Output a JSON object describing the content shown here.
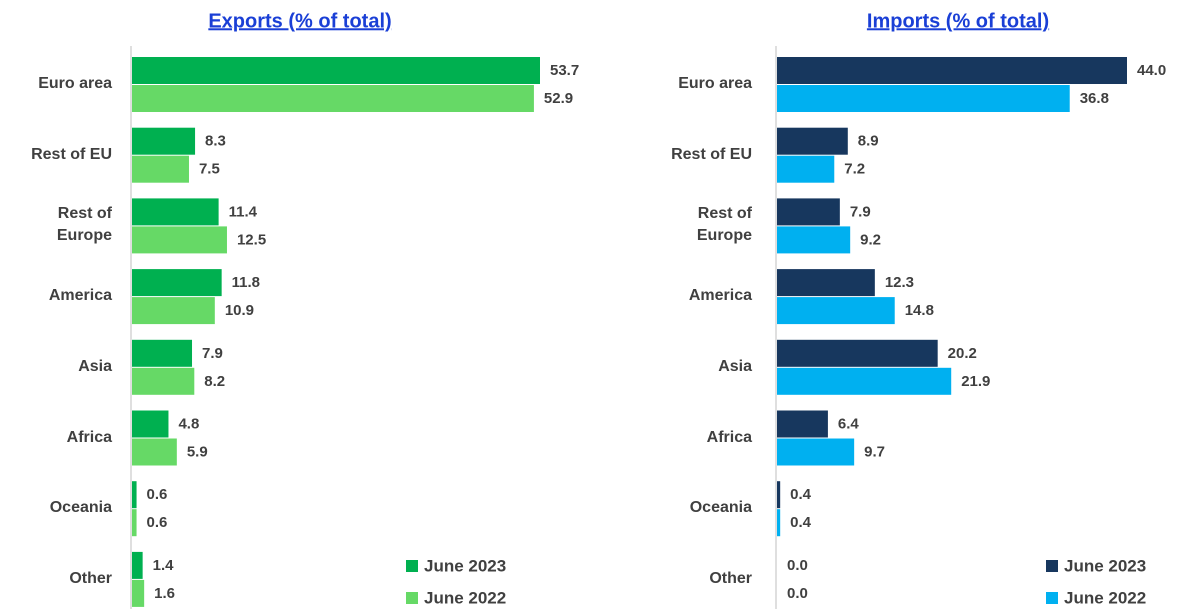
{
  "chart_data": [
    {
      "type": "bar",
      "title": "Exports (% of total)",
      "categories": [
        "Euro area",
        "Rest of EU",
        "Rest of\nEurope",
        "America",
        "Asia",
        "Africa",
        "Oceania",
        "Other"
      ],
      "series": [
        {
          "name": "June 2023",
          "color": "#00b050",
          "values": [
            53.7,
            8.3,
            11.4,
            11.8,
            7.9,
            4.8,
            0.6,
            1.4
          ],
          "value_labels": [
            "53.7",
            "8.3",
            "11.4",
            "11.8",
            "7.9",
            "4.8",
            "0.6",
            "1.4"
          ]
        },
        {
          "name": "June 2022",
          "color": "#66d966",
          "values": [
            52.9,
            7.5,
            12.5,
            10.9,
            8.2,
            5.9,
            0.6,
            1.6
          ],
          "value_labels": [
            "52.9",
            "7.5",
            "12.5",
            "10.9",
            "8.2",
            "5.9",
            "0.6",
            "1.6"
          ]
        }
      ]
    },
    {
      "type": "bar",
      "title": "Imports (% of total)",
      "categories": [
        "Euro area",
        "Rest of EU",
        "Rest of\nEurope",
        "America",
        "Asia",
        "Africa",
        "Oceania",
        "Other"
      ],
      "series": [
        {
          "name": "June 2023",
          "color": "#17375e",
          "values": [
            44.0,
            8.9,
            7.9,
            12.3,
            20.2,
            6.4,
            0.4,
            0.0
          ],
          "value_labels": [
            "44.0",
            "8.9",
            "7.9",
            "12.3",
            "20.2",
            "6.4",
            "0.4",
            "0.0"
          ]
        },
        {
          "name": "June 2022",
          "color": "#00b0f0",
          "values": [
            36.8,
            7.2,
            9.2,
            14.8,
            21.9,
            9.7,
            0.4,
            0.0
          ],
          "value_labels": [
            "36.8",
            "7.2",
            "9.2",
            "14.8",
            "21.9",
            "9.7",
            "0.4",
            "0.0"
          ]
        }
      ]
    }
  ]
}
